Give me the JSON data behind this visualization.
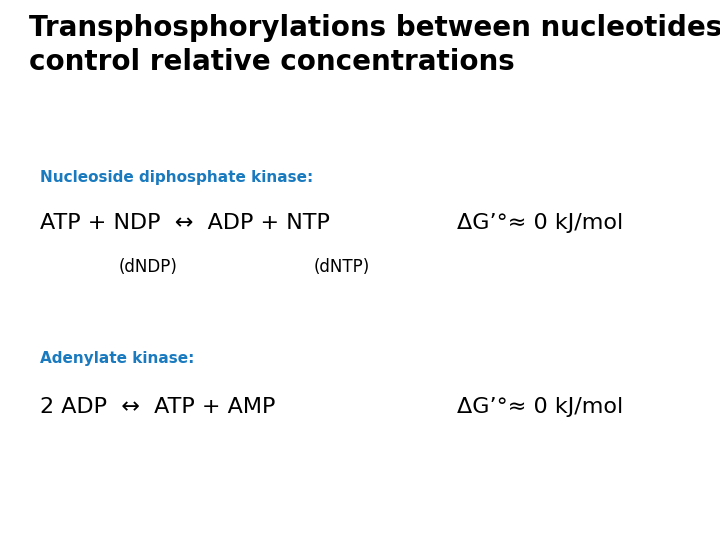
{
  "background_color": "#ffffff",
  "title_line1": "Transphosphorylations between nucleotides",
  "title_line2": "control relative concentrations",
  "title_color": "#000000",
  "title_fontsize": 20,
  "title_fontweight": "bold",
  "section1_label": "Nucleoside diphosphate kinase:",
  "section1_color": "#1a7abf",
  "section1_fontsize": 11,
  "section1_fontweight": "bold",
  "reaction1_main": "ATP + NDP  ↔  ADP + NTP",
  "reaction1_sub1": "(dNDP)",
  "reaction1_sub2": "(dNTP)",
  "reaction1_delta": "ΔG’°≈ 0 kJ/mol",
  "reaction1_fontsize": 16,
  "section2_label": "Adenylate kinase:",
  "section2_color": "#1a7abf",
  "section2_fontsize": 11,
  "section2_fontweight": "bold",
  "reaction2_main": "2 ADP  ↔  ATP + AMP",
  "reaction2_delta": "ΔG’°≈ 0 kJ/mol",
  "reaction2_fontsize": 16,
  "text_color": "#000000",
  "sub_fontsize": 12,
  "delta_fontsize": 16,
  "figwidth": 7.2,
  "figheight": 5.4,
  "dpi": 100
}
